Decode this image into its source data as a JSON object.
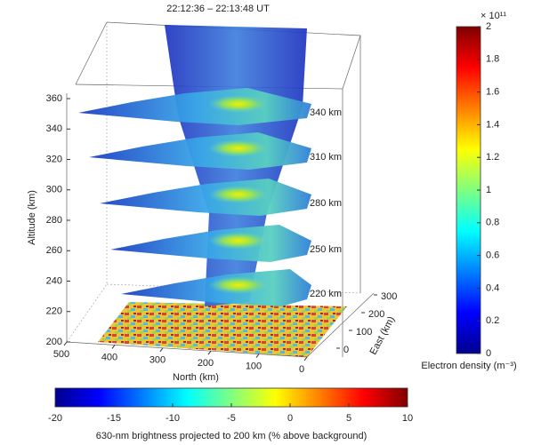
{
  "chart_data": {
    "type": "volume",
    "title": "22:12:36 – 22:13:48 UT",
    "zlabel": "Altitude (km)",
    "zlim": [
      200,
      360
    ],
    "zticks": [
      200,
      220,
      240,
      260,
      280,
      300,
      320,
      340,
      360
    ],
    "xlabel": "North (km)",
    "xlim": [
      500,
      0
    ],
    "xticks": [
      500,
      400,
      300,
      200,
      100,
      0
    ],
    "ylabel": "East (km)",
    "ylim": [
      0,
      300
    ],
    "yticks": [
      0,
      100,
      200,
      300
    ],
    "slice_labels": [
      "340 km",
      "310 km",
      "280 km",
      "250 km",
      "220 km"
    ],
    "colormap": [
      "#00008f",
      "#0000ff",
      "#0080ff",
      "#00ffff",
      "#80ff80",
      "#ffff00",
      "#ff8000",
      "#ff0000",
      "#800000"
    ],
    "colorbar": {
      "label": "Electron density (m⁻³)",
      "exponent": "× 10¹¹",
      "lim": [
        0,
        2
      ],
      "ticks": [
        0,
        0.2,
        0.4,
        0.6,
        0.8,
        1,
        1.2,
        1.4,
        1.6,
        1.8,
        2
      ]
    },
    "colorbar2": {
      "label": "630-nm brightness projected to 200 km (% above background)",
      "lim": [
        -20,
        10
      ],
      "ticks": [
        -20,
        -15,
        -10,
        -5,
        0,
        5,
        10
      ]
    }
  }
}
